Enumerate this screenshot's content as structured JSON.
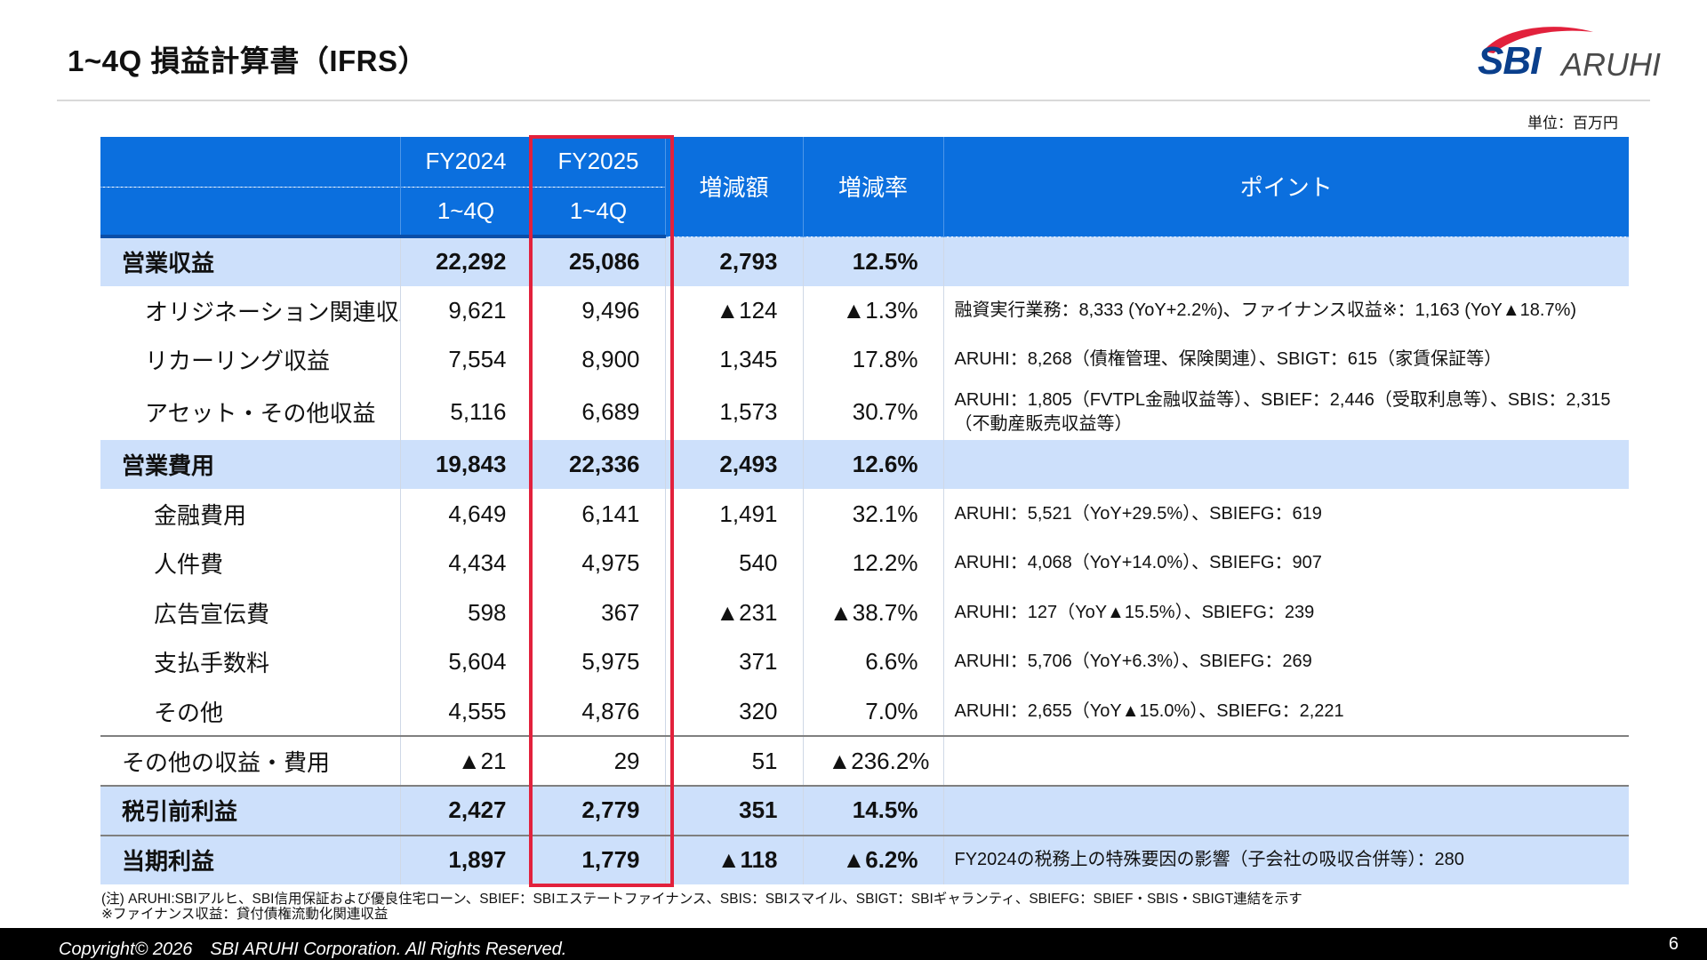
{
  "title": "1~4Q 損益計算書（IFRS）",
  "logo": {
    "brand": "SBI",
    "sub": "ARUHI",
    "colors": {
      "swoosh": "#e2213c",
      "brand": "#0a3f8c"
    }
  },
  "unit": "単位：百万円",
  "header": {
    "fy2024": "FY2024",
    "fy2025": "FY2025",
    "period_a": "1~4Q",
    "period_b": "1~4Q",
    "change": "増減額",
    "rate": "増減率",
    "point": "ポイント"
  },
  "rows": [
    {
      "label": "営業収益",
      "fy2024": "22,292",
      "fy2025": "25,086",
      "change": "2,793",
      "rate": "12.5%",
      "point": ""
    },
    {
      "label": "オリジネーション関連収益",
      "fy2024": "9,621",
      "fy2025": "9,496",
      "change": "▲124",
      "rate": "▲1.3%",
      "point": "融資実行業務：8,333 (YoY+2.2%)、ファイナンス収益※：1,163 (YoY▲18.7%)"
    },
    {
      "label": "リカーリング収益",
      "fy2024": "7,554",
      "fy2025": "8,900",
      "change": "1,345",
      "rate": "17.8%",
      "point": "ARUHI：8,268（債権管理、保険関連）、SBIGT：615（家賃保証等）"
    },
    {
      "label": "アセット・その他収益",
      "fy2024": "5,116",
      "fy2025": "6,689",
      "change": "1,573",
      "rate": "30.7%",
      "point": "ARUHI：1,805（FVTPL金融収益等）、SBIEF：2,446（受取利息等）、SBIS：2,315（不動産販売収益等）"
    },
    {
      "label": "営業費用",
      "fy2024": "19,843",
      "fy2025": "22,336",
      "change": "2,493",
      "rate": "12.6%",
      "point": ""
    },
    {
      "label": "金融費用",
      "fy2024": "4,649",
      "fy2025": "6,141",
      "change": "1,491",
      "rate": "32.1%",
      "point": "ARUHI：5,521（YoY+29.5%）、SBIEFG：619"
    },
    {
      "label": "人件費",
      "fy2024": "4,434",
      "fy2025": "4,975",
      "change": "540",
      "rate": "12.2%",
      "point": "ARUHI：4,068（YoY+14.0%）、SBIEFG：907"
    },
    {
      "label": "広告宣伝費",
      "fy2024": "598",
      "fy2025": "367",
      "change": "▲231",
      "rate": "▲38.7%",
      "point": "ARUHI：127（YoY▲15.5%）、SBIEFG：239"
    },
    {
      "label": "支払手数料",
      "fy2024": "5,604",
      "fy2025": "5,975",
      "change": "371",
      "rate": "6.6%",
      "point": "ARUHI：5,706（YoY+6.3%）、SBIEFG：269"
    },
    {
      "label": "その他",
      "fy2024": "4,555",
      "fy2025": "4,876",
      "change": "320",
      "rate": "7.0%",
      "point": "ARUHI：2,655（YoY▲15.0%）、SBIEFG：2,221"
    },
    {
      "label": "その他の収益・費用",
      "fy2024": "▲21",
      "fy2025": "29",
      "change": "51",
      "rate": "▲236.2%",
      "point": ""
    },
    {
      "label": "税引前利益",
      "fy2024": "2,427",
      "fy2025": "2,779",
      "change": "351",
      "rate": "14.5%",
      "point": ""
    },
    {
      "label": "当期利益",
      "fy2024": "1,897",
      "fy2025": "1,779",
      "change": "▲118",
      "rate": "▲6.2%",
      "point": "FY2024の税務上の特殊要因の影響（子会社の吸収合併等）：280"
    }
  ],
  "notes": {
    "line1": "(注) ARUHI:SBIアルヒ、SBI信用保証および優良住宅ローン、SBIEF：SBIエステートファイナンス、SBIS：SBIスマイル、SBIGT：SBIギャランティ、SBIEFG：SBIEF・SBIS・SBIGT連結を示す",
    "line2": "※ファイナンス収益：貸付債権流動化関連収益"
  },
  "footer": {
    "copyright": "Copyright© 2026　SBI ARUHI Corporation. All Rights Reserved.",
    "page": "6"
  },
  "colors": {
    "header_blue": "#0b6fde",
    "highlight_row": "#cde0fb",
    "accent_red": "#e2213c",
    "footer_bg": "#000000"
  }
}
